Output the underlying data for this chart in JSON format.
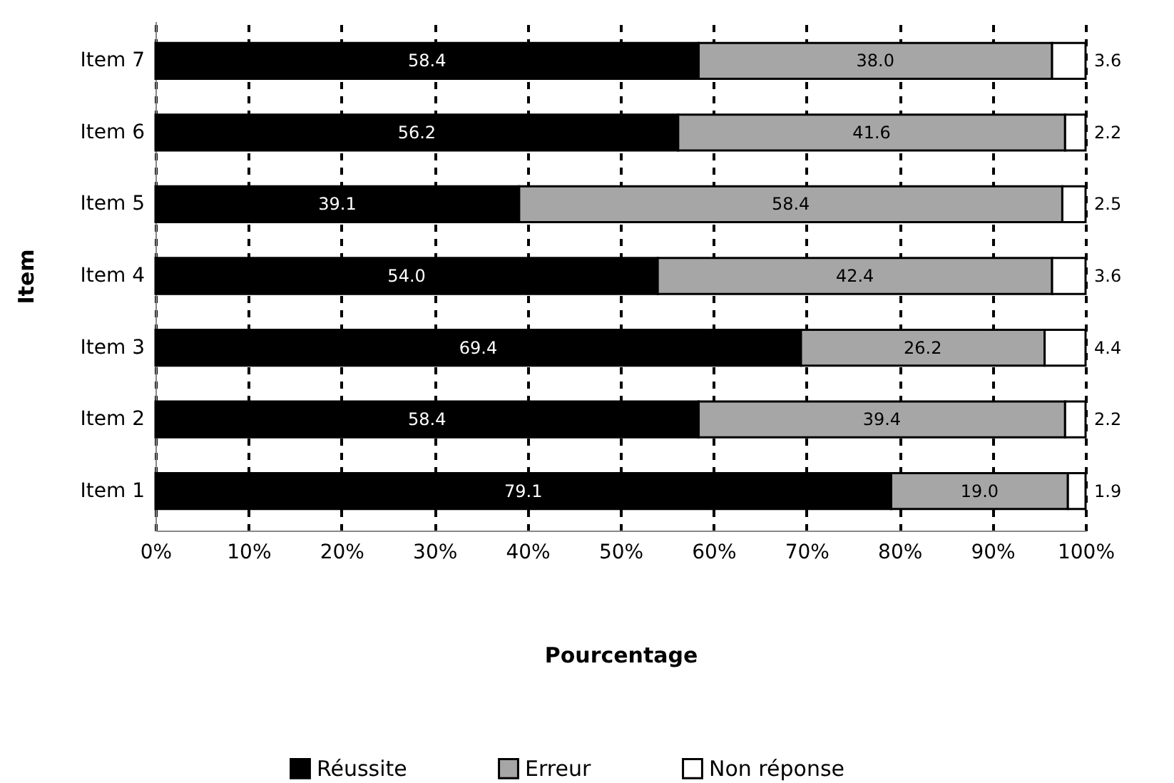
{
  "chart_data": {
    "type": "bar",
    "orientation": "horizontal",
    "stacked": true,
    "xlabel": "Pourcentage",
    "ylabel": "Item",
    "categories": [
      "Item 7",
      "Item 6",
      "Item 5",
      "Item 4",
      "Item 3",
      "Item 2",
      "Item 1"
    ],
    "series": [
      {
        "name": "Réussite",
        "color": "#000000",
        "values": [
          58.4,
          56.2,
          39.1,
          54.0,
          69.4,
          58.4,
          79.1
        ],
        "value_labels": [
          "58.4",
          "56.2",
          "39.1",
          "54.0",
          "69.4",
          "58.4",
          "79.1"
        ]
      },
      {
        "name": "Erreur",
        "color": "#a6a6a6",
        "values": [
          38.0,
          41.6,
          58.4,
          42.4,
          26.2,
          39.4,
          19.0
        ],
        "value_labels": [
          "38.0",
          "41.6",
          "58.4",
          "42.4",
          "26.2",
          "39.4",
          "19.0"
        ]
      },
      {
        "name": "Non réponse",
        "color": "#ffffff",
        "values": [
          3.6,
          2.2,
          2.5,
          3.6,
          4.4,
          2.2,
          1.9
        ],
        "value_labels": [
          "3.6",
          "2.2",
          "2.5",
          "3.6",
          "4.4",
          "2.2",
          "1.9"
        ]
      }
    ],
    "xlim": [
      0,
      100
    ],
    "xticks": [
      {
        "value": 0,
        "label": "0%"
      },
      {
        "value": 10,
        "label": "10%"
      },
      {
        "value": 20,
        "label": "20%"
      },
      {
        "value": 30,
        "label": "30%"
      },
      {
        "value": 40,
        "label": "40%"
      },
      {
        "value": 50,
        "label": "50%"
      },
      {
        "value": 60,
        "label": "60%"
      },
      {
        "value": 70,
        "label": "70%"
      },
      {
        "value": 80,
        "label": "80%"
      },
      {
        "value": 90,
        "label": "90%"
      },
      {
        "value": 100,
        "label": "100%"
      }
    ],
    "grid": "x",
    "legend": "bottom"
  }
}
